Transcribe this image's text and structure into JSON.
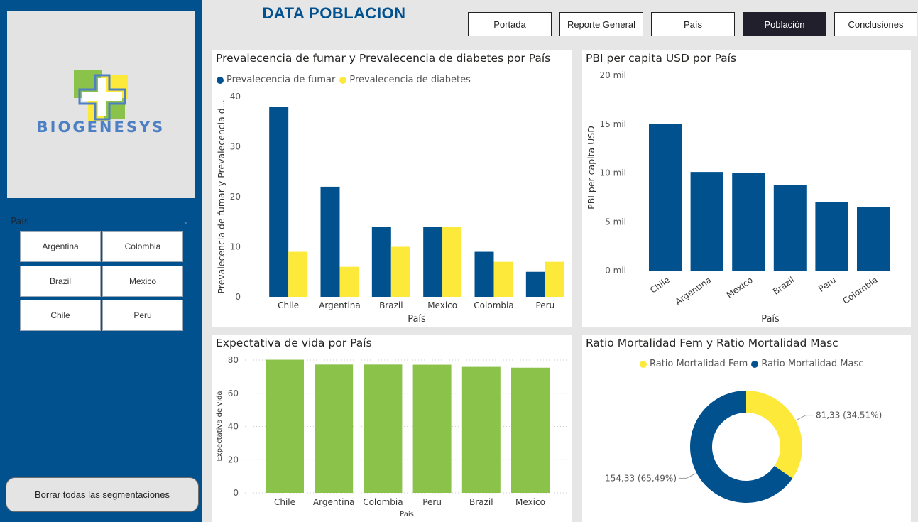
{
  "sidebar": {
    "logo_text": "BIOGENESYS",
    "slicer": {
      "title": "País",
      "options": [
        "Argentina",
        "Colombia",
        "Brazil",
        "Mexico",
        "Chile",
        "Peru"
      ]
    },
    "clear_button": "Borrar todas las segmentaciones"
  },
  "header": {
    "title": "DATA POBLACION",
    "nav": [
      {
        "label": "Portada",
        "active": false
      },
      {
        "label": "Reporte General",
        "active": false
      },
      {
        "label": "País",
        "active": false
      },
      {
        "label": "Población",
        "active": true
      },
      {
        "label": "Conclusiones",
        "active": false
      }
    ]
  },
  "colors": {
    "primary": "#02518f",
    "yellow": "#fde93a",
    "green": "#8bc34a",
    "sidebar": "#02518f",
    "logo_green": "#8bc34a",
    "logo_blue": "#4d7fc4"
  },
  "chart_data": [
    {
      "type": "bar",
      "title": "Prevalecencia de fumar y Prevalecencia de diabetes por País",
      "categories": [
        "Chile",
        "Argentina",
        "Brazil",
        "Mexico",
        "Colombia",
        "Peru"
      ],
      "series": [
        {
          "name": "Prevalecencia de fumar",
          "values": [
            38,
            22,
            14,
            14,
            9,
            5
          ],
          "color": "#02518f"
        },
        {
          "name": "Prevalecencia de diabetes",
          "values": [
            9,
            6,
            10,
            14,
            7,
            7
          ],
          "color": "#fde93a"
        }
      ],
      "xlabel": "País",
      "ylabel": "Prevalecencia de fumar y Prevalecencia d...",
      "ylim": [
        0,
        40
      ],
      "yticks": [
        "0",
        "10",
        "20",
        "30",
        "40"
      ],
      "grid": false
    },
    {
      "type": "bar",
      "title": "PBI per capita USD por País",
      "categories": [
        "Chile",
        "Argentina",
        "Mexico",
        "Brazil",
        "Peru",
        "Colombia"
      ],
      "values": [
        15000,
        10100,
        10000,
        8800,
        7000,
        6500
      ],
      "color": "#02518f",
      "xlabel": "País",
      "ylabel": "PBI per capita USD",
      "ylim": [
        0,
        20000
      ],
      "yticks": [
        "0 mil",
        "5 mil",
        "10 mil",
        "15 mil",
        "20 mil"
      ],
      "grid": false
    },
    {
      "type": "bar",
      "title": "Expectativa de vida por País",
      "categories": [
        "Chile",
        "Argentina",
        "Colombia",
        "Peru",
        "Brazil",
        "Mexico"
      ],
      "values": [
        80.2,
        77.3,
        77.3,
        77.2,
        75.9,
        75.4
      ],
      "color": "#8bc34a",
      "xlabel": "País",
      "ylabel": "Expectativa de vida",
      "ylim": [
        0,
        80
      ],
      "yticks": [
        "0",
        "20",
        "40",
        "60",
        "80"
      ],
      "grid": true
    },
    {
      "type": "pie",
      "title": "Ratio Mortalidad Fem y Ratio Mortalidad Masc",
      "series": [
        {
          "name": "Ratio Mortalidad Fem",
          "value": 81.33,
          "label": "81,33 (34,51%)",
          "color": "#fde93a"
        },
        {
          "name": "Ratio Mortalidad Masc",
          "value": 154.33,
          "label": "154,33 (65,49%)",
          "color": "#02518f"
        }
      ],
      "legend": "top"
    }
  ]
}
